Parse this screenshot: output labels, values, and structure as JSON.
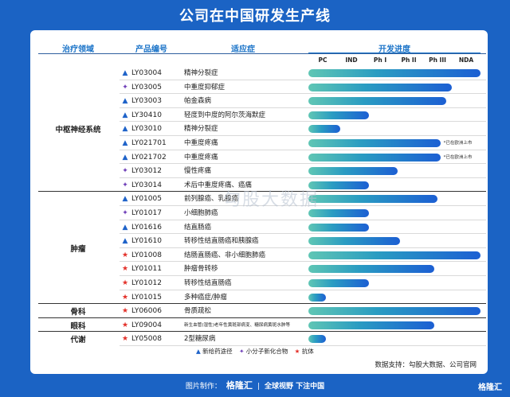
{
  "title": "公司在中国研发生产线",
  "headers": {
    "area": "治疗领域",
    "code": "产品编号",
    "indication": "适应症",
    "progress": "开发进度"
  },
  "stages": [
    "PC",
    "IND",
    "Ph I",
    "Ph II",
    "Ph III",
    "NDA"
  ],
  "colors": {
    "triangle": "#1f63c9",
    "diamond": "#6f3fb8",
    "star": "#e3312a"
  },
  "chart_data": {
    "type": "bar",
    "orientation": "horizontal",
    "stages": [
      "PC",
      "IND",
      "Ph I",
      "Ph II",
      "Ph III",
      "NDA"
    ],
    "progress_unit": "stage index, 0 = start of PC, 6 = end of NDA",
    "rows": [
      {
        "area": "中枢神经系统",
        "marker": "triangle",
        "code": "LY03004",
        "indication": "精神分裂症",
        "progress": 6.0,
        "note": ""
      },
      {
        "area": "中枢神经系统",
        "marker": "diamond",
        "code": "LY03005",
        "indication": "中重度抑郁症",
        "progress": 5.0,
        "note": ""
      },
      {
        "area": "中枢神经系统",
        "marker": "triangle",
        "code": "LY03003",
        "indication": "帕金森病",
        "progress": 4.8,
        "note": ""
      },
      {
        "area": "中枢神经系统",
        "marker": "triangle",
        "code": "LY30410",
        "indication": "轻度到中度的阿尔茨海默症",
        "progress": 2.1,
        "note": ""
      },
      {
        "area": "中枢神经系统",
        "marker": "triangle",
        "code": "LY03010",
        "indication": "精神分裂症",
        "progress": 1.1,
        "note": ""
      },
      {
        "area": "中枢神经系统",
        "marker": "triangle",
        "code": "LY021701",
        "indication": "中重度疼痛",
        "progress": 4.6,
        "note": "*已在欧洲上市"
      },
      {
        "area": "中枢神经系统",
        "marker": "triangle",
        "code": "LY021702",
        "indication": "中重度疼痛",
        "progress": 4.6,
        "note": "*已在欧洲上市"
      },
      {
        "area": "中枢神经系统",
        "marker": "diamond",
        "code": "LY03012",
        "indication": "慢性疼痛",
        "progress": 3.1,
        "note": ""
      },
      {
        "area": "中枢神经系统",
        "marker": "diamond",
        "code": "LY03014",
        "indication": "术后中重度疼痛、癌痛",
        "progress": 2.1,
        "note": ""
      },
      {
        "area": "肿瘤",
        "marker": "triangle",
        "code": "LY01005",
        "indication": "前列腺癌、乳腺癌",
        "progress": 4.5,
        "note": ""
      },
      {
        "area": "肿瘤",
        "marker": "diamond",
        "code": "LY01017",
        "indication": "小细胞肺癌",
        "progress": 2.1,
        "note": ""
      },
      {
        "area": "肿瘤",
        "marker": "triangle",
        "code": "LY01616",
        "indication": "结直肠癌",
        "progress": 2.1,
        "note": ""
      },
      {
        "area": "肿瘤",
        "marker": "triangle",
        "code": "LY01610",
        "indication": "转移性结直肠癌和胰腺癌",
        "progress": 3.2,
        "note": ""
      },
      {
        "area": "肿瘤",
        "marker": "star",
        "code": "LY01008",
        "indication": "结肠直肠癌、非小细胞肺癌",
        "progress": 6.0,
        "note": ""
      },
      {
        "area": "肿瘤",
        "marker": "star",
        "code": "LY01011",
        "indication": "肿瘤骨转移",
        "progress": 4.4,
        "note": ""
      },
      {
        "area": "肿瘤",
        "marker": "star",
        "code": "LY01012",
        "indication": "转移性结直肠癌",
        "progress": 2.1,
        "note": ""
      },
      {
        "area": "肿瘤",
        "marker": "star",
        "code": "LY01015",
        "indication": "多种癌症/肿瘤",
        "progress": 0.6,
        "note": ""
      },
      {
        "area": "骨科",
        "marker": "star",
        "code": "LY06006",
        "indication": "骨质疏松",
        "progress": 6.0,
        "note": ""
      },
      {
        "area": "眼科",
        "marker": "star",
        "code": "LY09004",
        "indication": "新生血管(湿性)老年性黄斑部病变、糖尿病黄斑水肿等",
        "progress": 4.4,
        "note": ""
      },
      {
        "area": "代谢",
        "marker": "star",
        "code": "LY05008",
        "indication": "2型糖尿病",
        "progress": 0.6,
        "note": ""
      }
    ]
  },
  "areas": [
    {
      "label": "中枢神经系统"
    },
    {
      "label": "肿瘤"
    },
    {
      "label": "骨科"
    },
    {
      "label": "眼科"
    },
    {
      "label": "代谢"
    }
  ],
  "legend": {
    "triangle_label": "新给药途径",
    "diamond_label": "小分子新化合物",
    "star_label": "抗体"
  },
  "source": "数据支持：勾股大数据、公司官网",
  "watermark": "勾股大数据",
  "footer": {
    "prefix": "图片制作：",
    "logo": "格隆汇",
    "slogan": "全球视野 下注中国"
  },
  "corner_logo": "格隆汇"
}
